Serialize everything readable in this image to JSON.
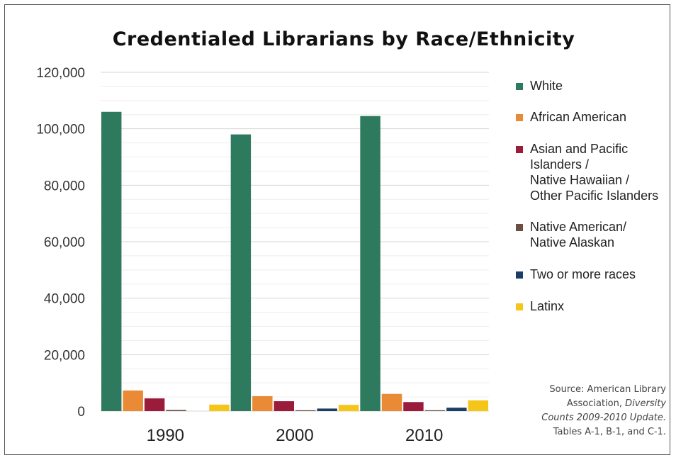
{
  "chart_data": {
    "type": "bar",
    "title": "Credentialed Librarians by Race/Ethnicity",
    "categories": [
      "1990",
      "2000",
      "2010"
    ],
    "ylim": [
      0,
      120000
    ],
    "yticks": [
      "0",
      "20,000",
      "40,000",
      "60,000",
      "80,000",
      "100,000",
      "120,000"
    ],
    "grid": true,
    "legend_position": "right",
    "series": [
      {
        "name": "White",
        "color": "#2e7a5e",
        "values": [
          106000,
          98000,
          104500
        ]
      },
      {
        "name": "African American",
        "color": "#ea8a36",
        "values": [
          7300,
          5300,
          6100
        ]
      },
      {
        "name": "Asian and Pacific\nIslanders /\nNative Hawaiian /\nOther Pacific Islanders",
        "color": "#9b1b3a",
        "values": [
          4500,
          3500,
          3200
        ]
      },
      {
        "name": "Native American/\nNative Alaskan",
        "color": "#6b5040",
        "values": [
          400,
          300,
          300
        ]
      },
      {
        "name": "Two or more races",
        "color": "#1c3e66",
        "values": [
          0,
          900,
          1200
        ]
      },
      {
        "name": "Latinx",
        "color": "#f5c518",
        "values": [
          2300,
          2200,
          3800
        ]
      }
    ]
  },
  "source": {
    "line1": "Source: American Library",
    "line2_prefix": "Association, ",
    "line2_italic": "Diversity",
    "line3_italic": "Counts 2009-2010 Update.",
    "line4": "Tables A-1, B-1, and C-1."
  }
}
